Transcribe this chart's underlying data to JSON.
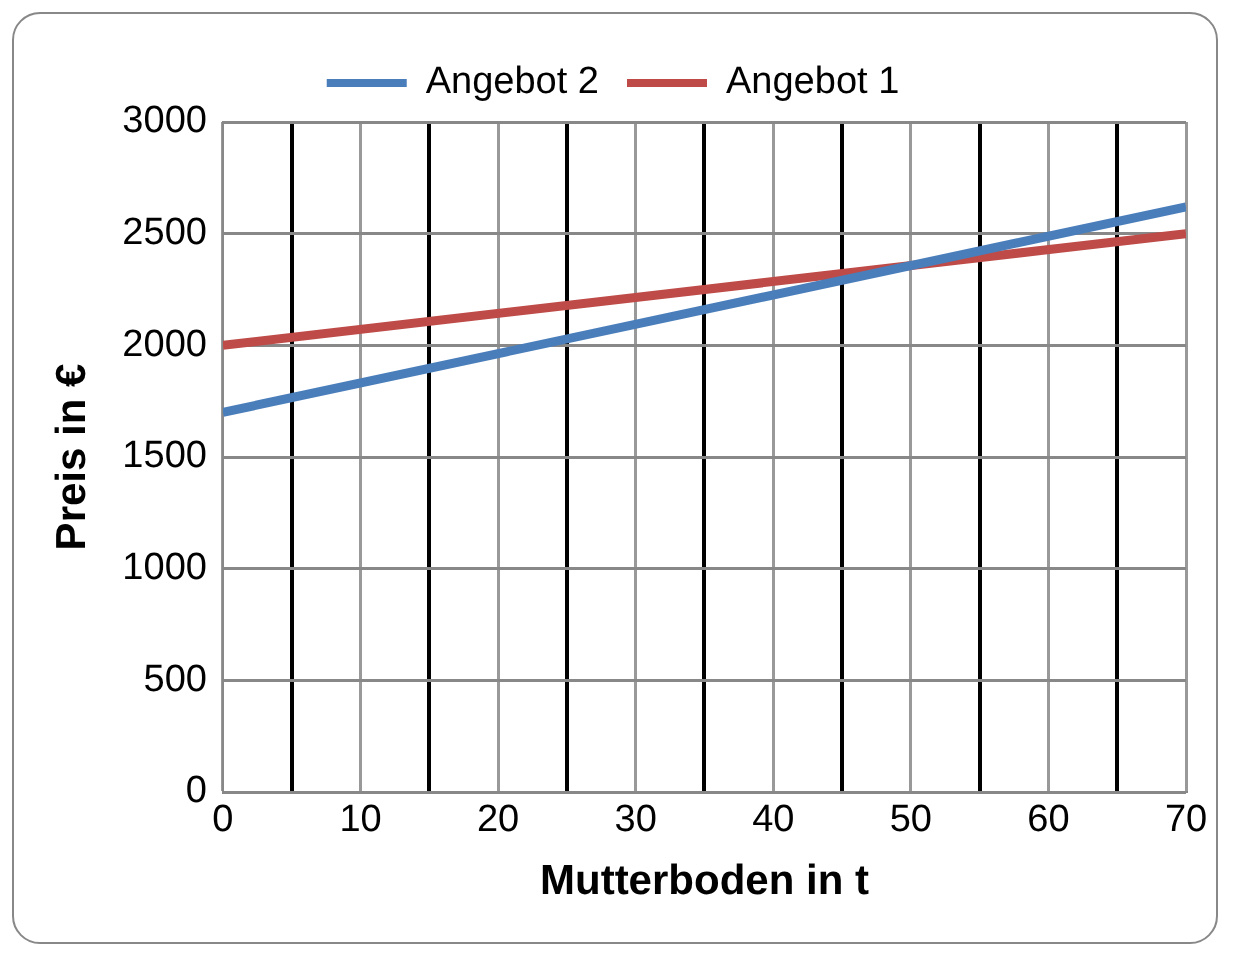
{
  "chart_data": {
    "type": "line",
    "xlabel": "Mutterboden in t",
    "ylabel": "Preis in €",
    "series": [
      {
        "name": "Angebot 2",
        "color": "#4a7ebb",
        "values": [
          1700,
          2620
        ]
      },
      {
        "name": "Angebot 1",
        "color": "#be4b48",
        "values": [
          2000,
          2500
        ]
      }
    ],
    "x": [
      0,
      70
    ],
    "xlim": [
      0,
      70
    ],
    "xticks": [
      0,
      {
        "value": 5,
        "label": null
      },
      10,
      {
        "value": 15,
        "label": null
      },
      20,
      {
        "value": 25,
        "label": null
      },
      30,
      {
        "value": 35,
        "label": null
      },
      40,
      {
        "value": 45,
        "label": null
      },
      50,
      {
        "value": 55,
        "label": null
      },
      60,
      {
        "value": 65,
        "label": null
      },
      70
    ],
    "ylim": [
      0,
      3000
    ],
    "yticks": [
      0,
      500,
      1000,
      1500,
      2000,
      2500,
      3000
    ],
    "grid": true,
    "legend": "top",
    "marker": "none",
    "line_style": "solid"
  }
}
